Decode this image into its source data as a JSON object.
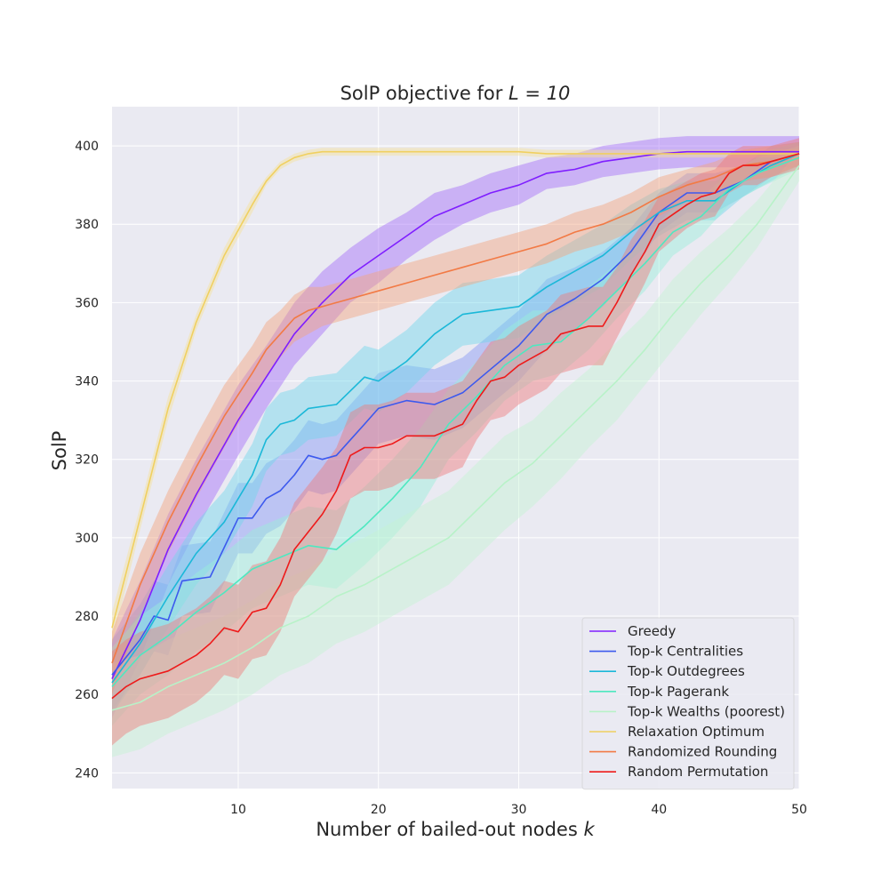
{
  "chart_data": {
    "type": "line",
    "title_prefix": "SolP objective for ",
    "title_math": "L = 10",
    "xlabel_prefix": "Number of bailed-out nodes ",
    "xlabel_math": "k",
    "ylabel": "SolP",
    "xlim": [
      1,
      50
    ],
    "ylim": [
      236,
      410
    ],
    "xticks": [
      10,
      20,
      30,
      40,
      50
    ],
    "yticks": [
      240,
      260,
      280,
      300,
      320,
      340,
      360,
      380,
      400
    ],
    "grid": true,
    "legend_position": "lower-right",
    "series": [
      {
        "name": "Greedy",
        "color": "#7f1eff",
        "band_color": "#a56cf8",
        "points": [
          [
            1,
            264
          ],
          [
            3,
            279
          ],
          [
            5,
            297
          ],
          [
            7,
            311
          ],
          [
            10,
            330
          ],
          [
            12,
            341
          ],
          [
            14,
            352
          ],
          [
            16,
            360
          ],
          [
            18,
            367
          ],
          [
            20,
            372
          ],
          [
            22,
            377
          ],
          [
            24,
            382
          ],
          [
            26,
            385
          ],
          [
            28,
            388
          ],
          [
            30,
            390
          ],
          [
            32,
            393
          ],
          [
            34,
            394
          ],
          [
            36,
            396
          ],
          [
            38,
            397
          ],
          [
            40,
            398
          ],
          [
            42,
            398.5
          ],
          [
            44,
            398.5
          ],
          [
            46,
            398.5
          ],
          [
            48,
            398.5
          ],
          [
            50,
            398.5
          ]
        ],
        "band": [
          10,
          10,
          9,
          9,
          9,
          8,
          8,
          8,
          7,
          7,
          6,
          6,
          5,
          5,
          5,
          4,
          4,
          4,
          4,
          4,
          4,
          4,
          4,
          4,
          4
        ]
      },
      {
        "name": "Top-k Centralities",
        "color": "#3c59ee",
        "band_color": "#8596f5",
        "points": [
          [
            1,
            265
          ],
          [
            3,
            274
          ],
          [
            4,
            280
          ],
          [
            5,
            279
          ],
          [
            6,
            289
          ],
          [
            8,
            290
          ],
          [
            10,
            305
          ],
          [
            11,
            305
          ],
          [
            12,
            310
          ],
          [
            13,
            312
          ],
          [
            14,
            316
          ],
          [
            15,
            321
          ],
          [
            16,
            320
          ],
          [
            17,
            321
          ],
          [
            18,
            325
          ],
          [
            19,
            329
          ],
          [
            20,
            333
          ],
          [
            22,
            335
          ],
          [
            24,
            334
          ],
          [
            26,
            337
          ],
          [
            28,
            343
          ],
          [
            30,
            349
          ],
          [
            32,
            357
          ],
          [
            34,
            361
          ],
          [
            36,
            366
          ],
          [
            38,
            373
          ],
          [
            40,
            383
          ],
          [
            42,
            388
          ],
          [
            44,
            388
          ],
          [
            46,
            391
          ],
          [
            48,
            396
          ],
          [
            50,
            398
          ]
        ],
        "band": [
          9,
          9,
          9,
          9,
          9,
          9,
          9,
          9,
          9,
          9,
          9,
          9,
          9,
          9,
          9,
          9,
          9,
          9,
          9,
          9,
          9,
          9,
          9,
          8,
          7,
          6,
          5,
          5,
          5,
          4,
          4,
          3
        ]
      },
      {
        "name": "Top-k Outdegrees",
        "color": "#1bb8d8",
        "band_color": "#71d6ea",
        "points": [
          [
            1,
            263
          ],
          [
            3,
            273
          ],
          [
            5,
            285
          ],
          [
            7,
            296
          ],
          [
            9,
            304
          ],
          [
            10,
            310
          ],
          [
            11,
            316
          ],
          [
            12,
            325
          ],
          [
            13,
            329
          ],
          [
            14,
            330
          ],
          [
            15,
            333
          ],
          [
            17,
            334
          ],
          [
            19,
            341
          ],
          [
            20,
            340
          ],
          [
            22,
            345
          ],
          [
            24,
            352
          ],
          [
            26,
            357
          ],
          [
            28,
            358
          ],
          [
            30,
            359
          ],
          [
            32,
            364
          ],
          [
            34,
            368
          ],
          [
            36,
            372
          ],
          [
            38,
            378
          ],
          [
            40,
            383
          ],
          [
            42,
            386
          ],
          [
            44,
            386
          ],
          [
            46,
            391
          ],
          [
            48,
            395
          ],
          [
            50,
            398
          ]
        ],
        "band": [
          8,
          8,
          8,
          8,
          8,
          8,
          8,
          8,
          8,
          8,
          8,
          8,
          8,
          8,
          8,
          8,
          8,
          8,
          8,
          8,
          8,
          8,
          7,
          6,
          5,
          5,
          4,
          4,
          3
        ]
      },
      {
        "name": "Top-k Pagerank",
        "color": "#4ee8c0",
        "band_color": "#9aefd9",
        "points": [
          [
            1,
            262
          ],
          [
            3,
            270
          ],
          [
            5,
            275
          ],
          [
            7,
            281
          ],
          [
            9,
            286
          ],
          [
            11,
            292
          ],
          [
            13,
            295
          ],
          [
            15,
            298
          ],
          [
            17,
            297
          ],
          [
            19,
            303
          ],
          [
            21,
            310
          ],
          [
            23,
            318
          ],
          [
            25,
            329
          ],
          [
            27,
            336
          ],
          [
            29,
            344
          ],
          [
            31,
            349
          ],
          [
            33,
            350
          ],
          [
            35,
            356
          ],
          [
            37,
            363
          ],
          [
            39,
            370
          ],
          [
            41,
            378
          ],
          [
            43,
            382
          ],
          [
            45,
            389
          ],
          [
            47,
            393
          ],
          [
            50,
            397
          ]
        ],
        "band": [
          10,
          10,
          10,
          10,
          10,
          10,
          10,
          10,
          10,
          10,
          10,
          10,
          9,
          9,
          9,
          9,
          8,
          8,
          7,
          7,
          6,
          5,
          4,
          4,
          3
        ]
      },
      {
        "name": "Top-k Wealths (poorest)",
        "color": "#b8f2c8",
        "band_color": "#c6f5d2",
        "points": [
          [
            1,
            256
          ],
          [
            3,
            258
          ],
          [
            5,
            262
          ],
          [
            7,
            265
          ],
          [
            9,
            268
          ],
          [
            11,
            272
          ],
          [
            13,
            277
          ],
          [
            15,
            280
          ],
          [
            17,
            285
          ],
          [
            19,
            288
          ],
          [
            21,
            292
          ],
          [
            23,
            296
          ],
          [
            25,
            300
          ],
          [
            27,
            307
          ],
          [
            29,
            314
          ],
          [
            31,
            319
          ],
          [
            33,
            326
          ],
          [
            35,
            333
          ],
          [
            37,
            340
          ],
          [
            39,
            348
          ],
          [
            41,
            357
          ],
          [
            43,
            365
          ],
          [
            45,
            372
          ],
          [
            47,
            380
          ],
          [
            50,
            395
          ]
        ],
        "band": [
          12,
          12,
          12,
          12,
          12,
          12,
          12,
          12,
          12,
          12,
          12,
          12,
          12,
          12,
          12,
          11,
          11,
          10,
          10,
          9,
          9,
          8,
          7,
          6,
          4
        ]
      },
      {
        "name": "Relaxation Optimum",
        "color": "#f0d060",
        "band_color": "#f7e39a",
        "points": [
          [
            1,
            277
          ],
          [
            3,
            305
          ],
          [
            5,
            333
          ],
          [
            7,
            355
          ],
          [
            9,
            372
          ],
          [
            11,
            385
          ],
          [
            12,
            391
          ],
          [
            13,
            395
          ],
          [
            14,
            397
          ],
          [
            15,
            398
          ],
          [
            16,
            398.5
          ],
          [
            18,
            398.5
          ],
          [
            20,
            398.5
          ],
          [
            22,
            398.5
          ],
          [
            24,
            398.5
          ],
          [
            26,
            398.5
          ],
          [
            28,
            398.5
          ],
          [
            30,
            398.5
          ],
          [
            32,
            398
          ],
          [
            34,
            398
          ],
          [
            36,
            398
          ],
          [
            38,
            398
          ],
          [
            40,
            398
          ],
          [
            42,
            398
          ],
          [
            44,
            398
          ],
          [
            46,
            398
          ],
          [
            48,
            398
          ],
          [
            50,
            398
          ]
        ],
        "band": [
          4,
          3,
          3,
          2,
          2,
          2,
          1,
          1,
          1,
          1,
          1,
          1,
          1,
          1,
          1,
          1,
          1,
          1,
          1,
          1,
          1,
          1,
          1,
          1,
          1,
          1,
          1,
          1
        ]
      },
      {
        "name": "Randomized Rounding",
        "color": "#f27a45",
        "band_color": "#f4a47c",
        "points": [
          [
            1,
            268
          ],
          [
            3,
            288
          ],
          [
            5,
            304
          ],
          [
            7,
            318
          ],
          [
            9,
            331
          ],
          [
            11,
            342
          ],
          [
            12,
            348
          ],
          [
            13,
            352
          ],
          [
            14,
            356
          ],
          [
            15,
            358
          ],
          [
            16,
            359
          ],
          [
            17,
            360
          ],
          [
            18,
            361
          ],
          [
            20,
            363
          ],
          [
            22,
            365
          ],
          [
            24,
            367
          ],
          [
            26,
            369
          ],
          [
            28,
            371
          ],
          [
            30,
            373
          ],
          [
            32,
            375
          ],
          [
            34,
            378
          ],
          [
            36,
            380
          ],
          [
            38,
            383
          ],
          [
            40,
            387
          ],
          [
            42,
            390
          ],
          [
            44,
            392
          ],
          [
            46,
            395
          ],
          [
            48,
            396
          ],
          [
            50,
            398
          ]
        ],
        "band": [
          8,
          8,
          8,
          8,
          8,
          7,
          7,
          6,
          6,
          6,
          5,
          5,
          5,
          5,
          5,
          5,
          5,
          5,
          5,
          5,
          5,
          5,
          5,
          5,
          4,
          4,
          4,
          4,
          3
        ]
      },
      {
        "name": "Random Permutation",
        "color": "#ee1a1a",
        "band_color": "#f07a7a",
        "points": [
          [
            1,
            259
          ],
          [
            2,
            262
          ],
          [
            3,
            264
          ],
          [
            5,
            266
          ],
          [
            6,
            268
          ],
          [
            7,
            270
          ],
          [
            8,
            273
          ],
          [
            9,
            277
          ],
          [
            10,
            276
          ],
          [
            11,
            281
          ],
          [
            12,
            282
          ],
          [
            13,
            288
          ],
          [
            14,
            297
          ],
          [
            16,
            306
          ],
          [
            17,
            312
          ],
          [
            18,
            321
          ],
          [
            19,
            323
          ],
          [
            20,
            323
          ],
          [
            21,
            324
          ],
          [
            22,
            326
          ],
          [
            24,
            326
          ],
          [
            26,
            329
          ],
          [
            27,
            335
          ],
          [
            28,
            340
          ],
          [
            29,
            341
          ],
          [
            30,
            344
          ],
          [
            31,
            346
          ],
          [
            32,
            348
          ],
          [
            33,
            352
          ],
          [
            34,
            353
          ],
          [
            35,
            354
          ],
          [
            36,
            354
          ],
          [
            37,
            360
          ],
          [
            38,
            367
          ],
          [
            39,
            373
          ],
          [
            40,
            380
          ],
          [
            42,
            385
          ],
          [
            43,
            387
          ],
          [
            44,
            388
          ],
          [
            45,
            393
          ],
          [
            46,
            395
          ],
          [
            47,
            395
          ],
          [
            48,
            396
          ],
          [
            50,
            398
          ]
        ],
        "band": [
          12,
          12,
          12,
          12,
          12,
          12,
          12,
          12,
          12,
          12,
          12,
          12,
          12,
          12,
          11,
          11,
          11,
          11,
          11,
          11,
          11,
          11,
          10,
          10,
          10,
          10,
          10,
          10,
          10,
          10,
          10,
          10,
          9,
          9,
          8,
          7,
          6,
          6,
          6,
          5,
          5,
          5,
          4,
          4
        ]
      }
    ]
  }
}
